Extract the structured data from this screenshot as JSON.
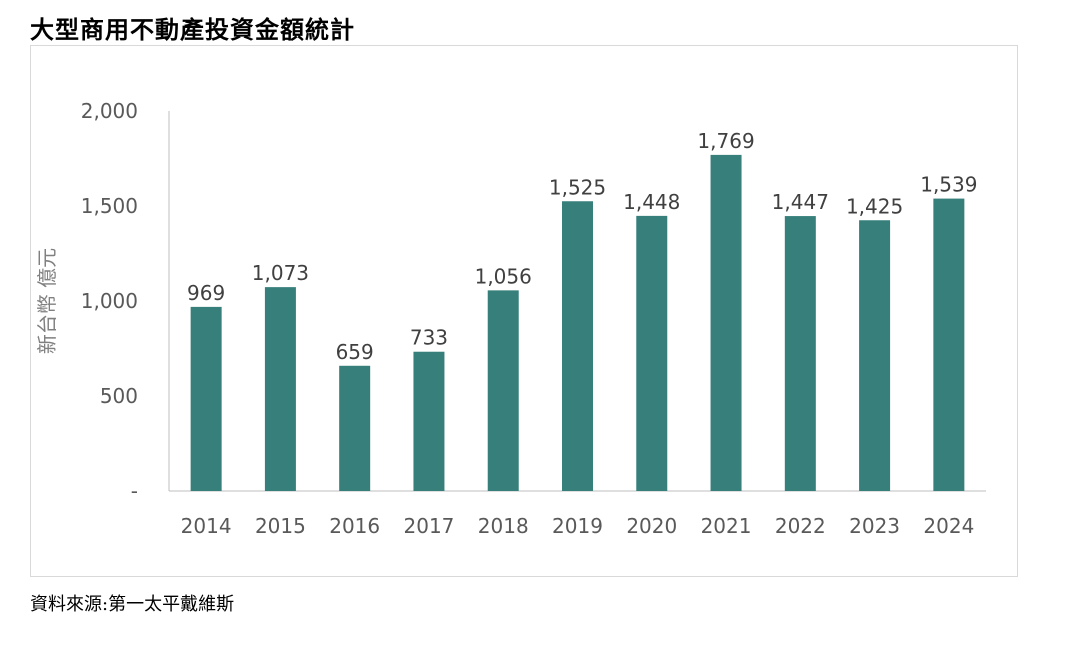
{
  "page": {
    "title": "大型商用不動產投資金額統計",
    "source": "資料來源:第一太平戴維斯"
  },
  "chart_data": {
    "type": "bar",
    "categories": [
      "2014",
      "2015",
      "2016",
      "2017",
      "2018",
      "2019",
      "2020",
      "2021",
      "2022",
      "2023",
      "2024"
    ],
    "values": [
      969,
      1073,
      659,
      733,
      1056,
      1525,
      1448,
      1769,
      1447,
      1425,
      1539
    ],
    "value_labels": [
      "969",
      "1,073",
      "659",
      "733",
      "1,056",
      "1,525",
      "1,448",
      "1,769",
      "1,447",
      "1,425",
      "1,539"
    ],
    "xlabel": "",
    "ylabel": "新台幣 億元",
    "ylim": [
      0,
      2000
    ],
    "y_ticks": [
      0,
      500,
      1000,
      1500,
      2000
    ],
    "y_tick_labels": [
      "-",
      "500",
      "1,000",
      "1,500",
      "2,000"
    ],
    "grid": false,
    "legend": "none",
    "bar_color": "#367f7b"
  }
}
